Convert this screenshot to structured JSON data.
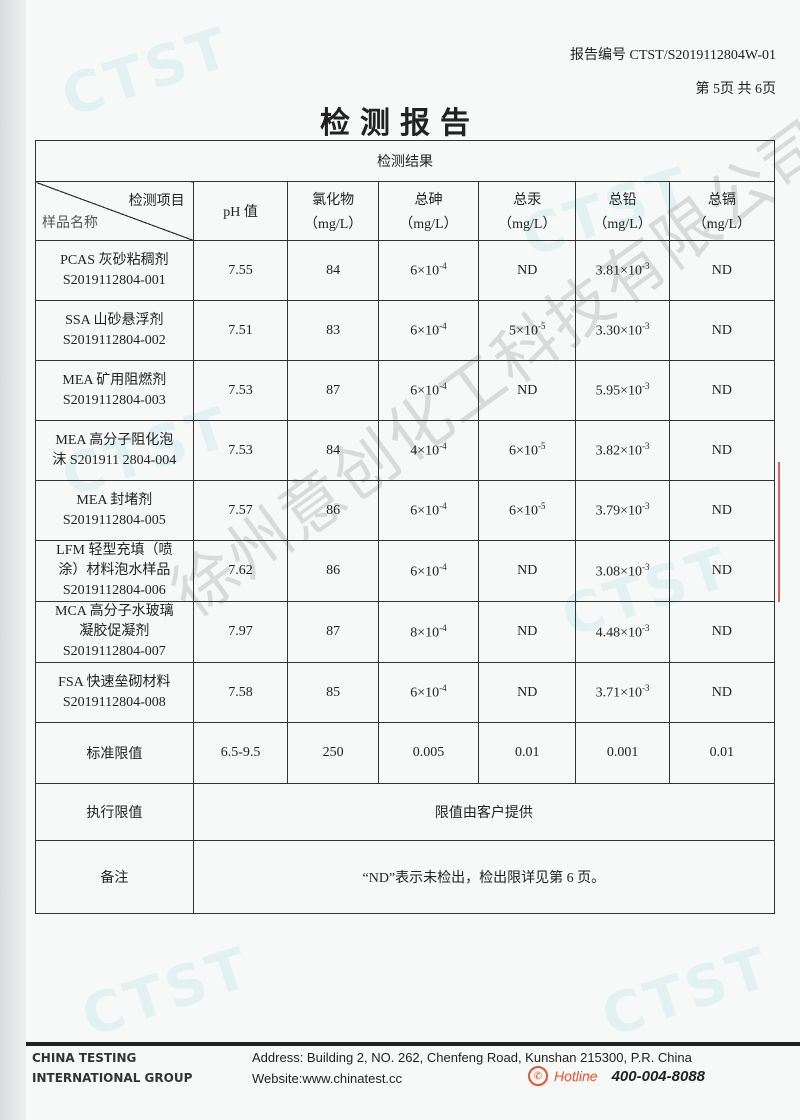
{
  "header": {
    "report_no": "报告编号 CTST/S2019112804W-01",
    "page_no": "第 5页  共 6页",
    "title": "检测报告"
  },
  "watermark": {
    "text": "CTST",
    "stamp": "徐州意创化工科技有限公司"
  },
  "table": {
    "caption": "检测结果",
    "corner_top": "检测项目",
    "corner_bottom": "样品名称",
    "columns": [
      {
        "name": "pH 值",
        "unit": ""
      },
      {
        "name": "氯化物",
        "unit": "（mg/L）"
      },
      {
        "name": "总砷",
        "unit": "（mg/L）"
      },
      {
        "name": "总汞",
        "unit": "（mg/L）"
      },
      {
        "name": "总铅",
        "unit": "（mg/L）"
      },
      {
        "name": "总镉",
        "unit": "（mg/L）"
      }
    ],
    "rows": [
      {
        "name": [
          "PCAS 灰砂粘稠剂",
          "S2019112804-001"
        ],
        "ph": "7.55",
        "cl": "84",
        "as": {
          "b": "6×10",
          "e": "-4"
        },
        "hg": {
          "b": "ND",
          "e": ""
        },
        "pb": {
          "b": "3.81×10",
          "e": "-3"
        },
        "cd": "ND"
      },
      {
        "name": [
          "SSA  山砂悬浮剂",
          "S2019112804-002"
        ],
        "ph": "7.51",
        "cl": "83",
        "as": {
          "b": "6×10",
          "e": "-4"
        },
        "hg": {
          "b": "5×10",
          "e": "-5"
        },
        "pb": {
          "b": "3.30×10",
          "e": "-3"
        },
        "cd": "ND"
      },
      {
        "name": [
          "MEA 矿用阻燃剂",
          "S2019112804-003"
        ],
        "ph": "7.53",
        "cl": "87",
        "as": {
          "b": "6×10",
          "e": "-4"
        },
        "hg": {
          "b": "ND",
          "e": ""
        },
        "pb": {
          "b": "5.95×10",
          "e": "-3"
        },
        "cd": "ND"
      },
      {
        "name": [
          "MEA 高分子阻化泡",
          "沫 S201911 2804-004"
        ],
        "ph": "7.53",
        "cl": "84",
        "as": {
          "b": "4×10",
          "e": "-4"
        },
        "hg": {
          "b": "6×10",
          "e": "-5"
        },
        "pb": {
          "b": "3.82×10",
          "e": "-3"
        },
        "cd": "ND"
      },
      {
        "name": [
          "MEA 封堵剂",
          "S2019112804-005"
        ],
        "ph": "7.57",
        "cl": "86",
        "as": {
          "b": "6×10",
          "e": "-4"
        },
        "hg": {
          "b": "6×10",
          "e": "-5"
        },
        "pb": {
          "b": "3.79×10",
          "e": "-3"
        },
        "cd": "ND"
      },
      {
        "name": [
          "LFM 轻型充填（喷",
          "涂）材料泡水样品",
          "S2019112804-006"
        ],
        "ph": "7.62",
        "cl": "86",
        "as": {
          "b": "6×10",
          "e": "-4"
        },
        "hg": {
          "b": "ND",
          "e": ""
        },
        "pb": {
          "b": "3.08×10",
          "e": "-3"
        },
        "cd": "ND"
      },
      {
        "name": [
          "MCA 高分子水玻璃",
          "凝胶促凝剂",
          "S2019112804-007"
        ],
        "ph": "7.97",
        "cl": "87",
        "as": {
          "b": "8×10",
          "e": "-4"
        },
        "hg": {
          "b": "ND",
          "e": ""
        },
        "pb": {
          "b": "4.48×10",
          "e": "-3"
        },
        "cd": "ND"
      },
      {
        "name": [
          "FSA 快速垒砌材料",
          "S2019112804-008"
        ],
        "ph": "7.58",
        "cl": "85",
        "as": {
          "b": "6×10",
          "e": "-4"
        },
        "hg": {
          "b": "ND",
          "e": ""
        },
        "pb": {
          "b": "3.71×10",
          "e": "-3"
        },
        "cd": "ND"
      }
    ],
    "standard": {
      "label": "标准限值",
      "values": [
        "6.5-9.5",
        "250",
        "0.005",
        "0.01",
        "0.001",
        "0.01"
      ]
    },
    "exec": {
      "label": "执行限值",
      "value": "限值由客户提供"
    },
    "note": {
      "label": "备注",
      "value": "“ND”表示未检出，检出限详见第 6 页。"
    }
  },
  "footer": {
    "org_line1": "CHINA TESTING",
    "org_line2": "INTERNATIONAL GROUP",
    "address": "Address: Building 2, NO. 262, Chenfeng Road, Kunshan 215300, P.R. China",
    "website": "Website:www.chinatest.cc",
    "hotline_label": "Hotline",
    "hotline": "400-004-8088",
    "accent": "#e4572e"
  }
}
